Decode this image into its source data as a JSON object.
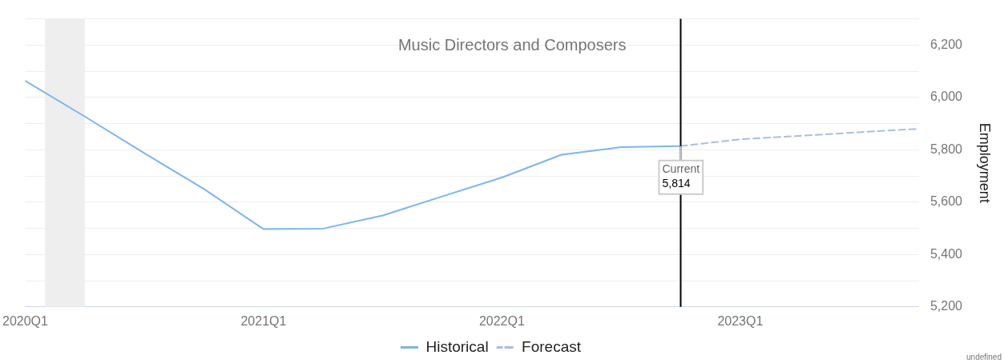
{
  "chart_data": {
    "type": "line",
    "title": "Music Directors and Composers",
    "ylabel": "Employment",
    "xlim": [
      "2020-01",
      "2023-10"
    ],
    "xticks": [
      {
        "value": "2020-01",
        "label": "2020Q1"
      },
      {
        "value": "2021-01",
        "label": "2021Q1"
      },
      {
        "value": "2022-01",
        "label": "2022Q1"
      },
      {
        "value": "2023-01",
        "label": "2023Q1"
      }
    ],
    "ylim": [
      5200,
      6300
    ],
    "yticks": [
      {
        "value": 5200,
        "label": "5,200"
      },
      {
        "value": 5300,
        "label": null
      },
      {
        "value": 5400,
        "label": "5,400"
      },
      {
        "value": 5500,
        "label": null
      },
      {
        "value": 5600,
        "label": "5,600"
      },
      {
        "value": 5700,
        "label": null
      },
      {
        "value": 5800,
        "label": "5,800"
      },
      {
        "value": 5900,
        "label": null
      },
      {
        "value": 6000,
        "label": "6,000"
      },
      {
        "value": 6100,
        "label": null
      },
      {
        "value": 6200,
        "label": "6,200"
      },
      {
        "value": 6300,
        "label": null
      }
    ],
    "grid": "y",
    "legend": "bottom",
    "marker": "none",
    "series": [
      {
        "name": "Historical",
        "color": "#7cb5ec",
        "line_style": "solid",
        "x": [
          "2020-01",
          "2020-04",
          "2020-07",
          "2020-10",
          "2021-01",
          "2021-04",
          "2021-07",
          "2021-10",
          "2022-01",
          "2022-04",
          "2022-07",
          "2022-10"
        ],
        "values": [
          6063,
          5927,
          5787,
          5650,
          5497,
          5499,
          5549,
          5622,
          5694,
          5781,
          5810,
          5814
        ]
      },
      {
        "name": "Forecast",
        "color": "#a9bfdc",
        "line_style": "dashed",
        "x": [
          "2022-10",
          "2023-01",
          "2023-04",
          "2023-07",
          "2023-10"
        ],
        "values": [
          5814,
          5840,
          5853,
          5867,
          5880
        ]
      }
    ],
    "bands": [
      {
        "axis": "x",
        "from": "2020-02",
        "to": "2020-04",
        "color": "#eeeeee"
      }
    ],
    "ref_lines": [
      {
        "axis": "x",
        "value": "2022-10",
        "color": "#000000"
      }
    ],
    "annotations": [
      {
        "text": "Current\n5,814",
        "x": "2022-10",
        "y": 5814
      },
      "undefined"
    ]
  }
}
